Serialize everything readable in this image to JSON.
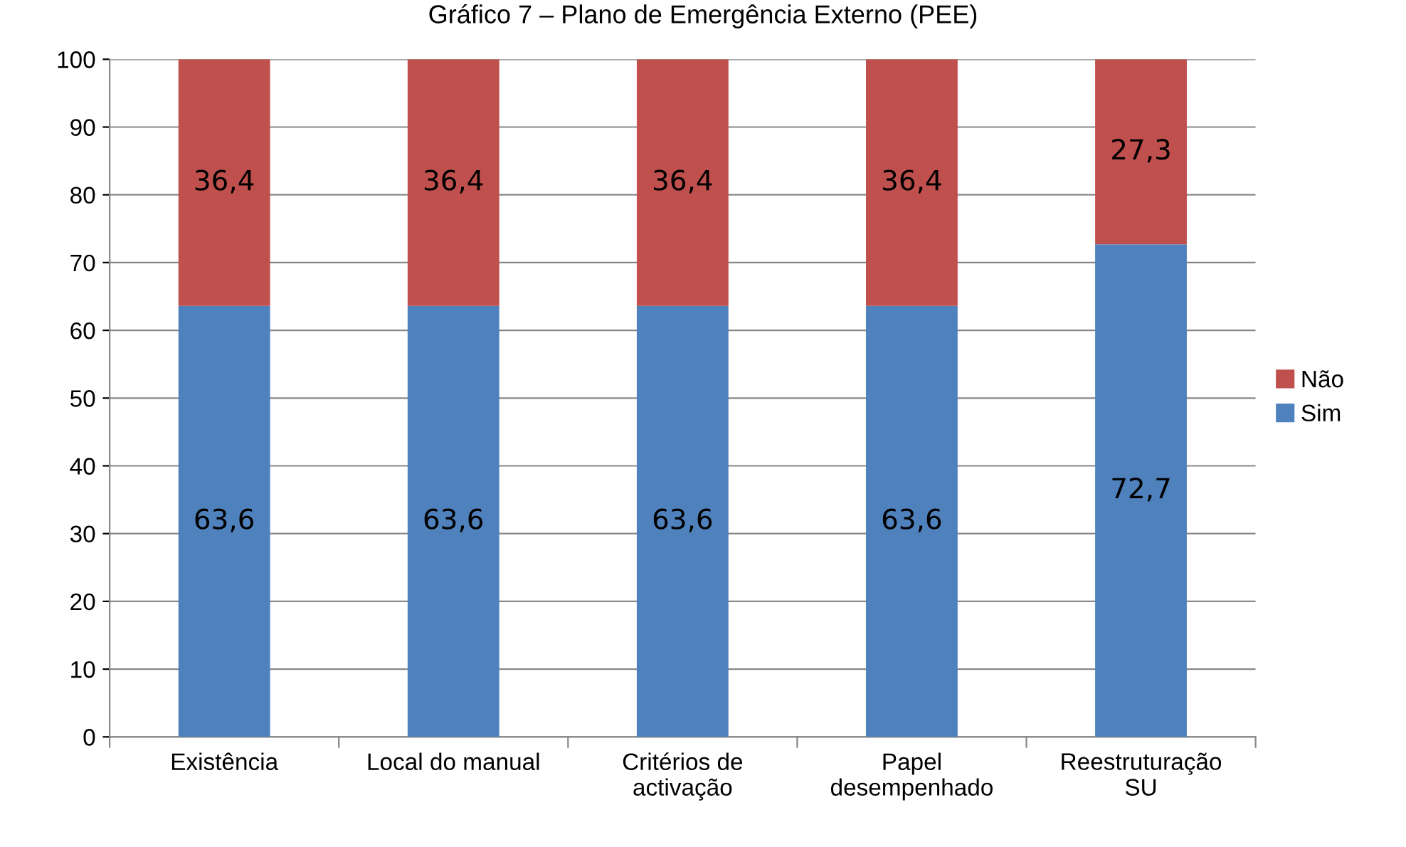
{
  "chart_data": {
    "type": "bar",
    "title": "Gráfico 7 – Plano de Emergência Externo (PEE)",
    "categories": [
      "Existência",
      "Local do manual",
      "Critérios de\nactivação",
      "Papel\ndesempenhado",
      "Reestruturação\nSU"
    ],
    "series": [
      {
        "name": "Sim",
        "color": "#4f81bd",
        "values": [
          63.6,
          63.6,
          63.6,
          63.6,
          72.7
        ],
        "value_labels": [
          "63,6",
          "63,6",
          "63,6",
          "63,6",
          "72,7"
        ]
      },
      {
        "name": "Não",
        "color": "#c0504d",
        "values": [
          36.4,
          36.4,
          36.4,
          36.4,
          27.3
        ],
        "value_labels": [
          "36,4",
          "36,4",
          "36,4",
          "36,4",
          "27,3"
        ]
      }
    ],
    "stacked": true,
    "ylim": [
      0,
      100
    ],
    "yticks": [
      0,
      10,
      20,
      30,
      40,
      50,
      60,
      70,
      80,
      90,
      100
    ],
    "grid": "y",
    "legend": "right"
  }
}
